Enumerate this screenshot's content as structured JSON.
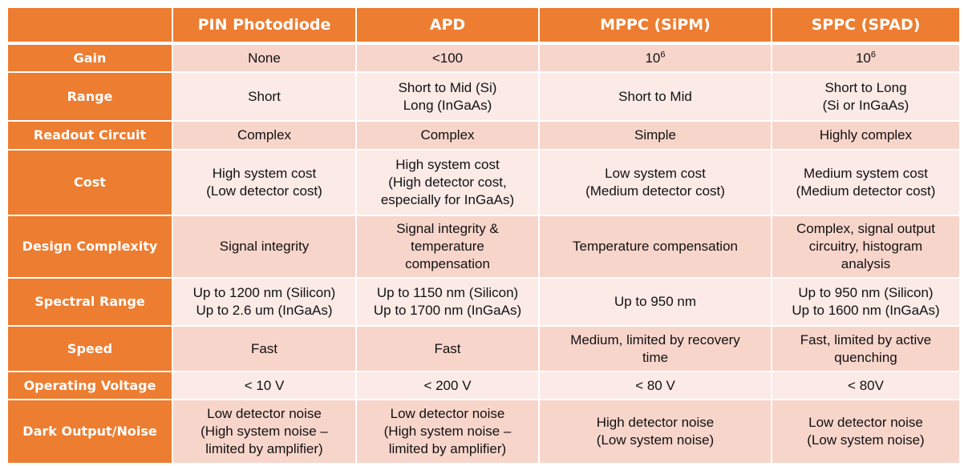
{
  "colors": {
    "header": "#ED7D31",
    "row_dark": "#F8D5CB",
    "row_light": "#FBEAE6",
    "header_text": "#FFFFFF"
  },
  "header": [
    "",
    "PIN Photodiode",
    "APD",
    "MPPC (SiPM)",
    "SPPC (SPAD)"
  ],
  "rows": [
    {
      "label": "Gain",
      "cells": [
        [
          "None"
        ],
        [
          "<100"
        ],
        [
          {
            "base": "10",
            "sup": "6"
          }
        ],
        [
          {
            "base": "10",
            "sup": "6"
          }
        ]
      ]
    },
    {
      "label": "Range",
      "cells": [
        [
          "Short"
        ],
        [
          "Short to Mid (Si)",
          "Long (InGaAs)"
        ],
        [
          "Short to Mid"
        ],
        [
          "Short to Long",
          "(Si or InGaAs)"
        ]
      ]
    },
    {
      "label": "Readout Circuit",
      "cells": [
        [
          "Complex"
        ],
        [
          "Complex"
        ],
        [
          "Simple"
        ],
        [
          "Highly complex"
        ]
      ]
    },
    {
      "label": "Cost",
      "cells": [
        [
          "High system cost",
          "(Low detector cost)"
        ],
        [
          "High system cost",
          "(High detector cost,",
          "especially for InGaAs)"
        ],
        [
          "Low system cost",
          "(Medium detector cost)"
        ],
        [
          "Medium system cost",
          "(Medium detector cost)"
        ]
      ]
    },
    {
      "label": "Design Complexity",
      "cells": [
        [
          "Signal integrity"
        ],
        [
          "Signal integrity &",
          "temperature",
          "compensation"
        ],
        [
          "Temperature compensation"
        ],
        [
          "Complex, signal output",
          "circuitry, histogram",
          "analysis"
        ]
      ]
    },
    {
      "label": "Spectral Range",
      "cells": [
        [
          "Up to 1200 nm (Silicon)",
          "Up to 2.6 um (InGaAs)"
        ],
        [
          "Up to 1150 nm (Silicon)",
          "Up to 1700 nm (InGaAs)"
        ],
        [
          "Up to 950 nm"
        ],
        [
          "Up to 950 nm (Silicon)",
          "Up to 1600 nm (InGaAs)"
        ]
      ]
    },
    {
      "label": "Speed",
      "cells": [
        [
          "Fast"
        ],
        [
          "Fast"
        ],
        [
          "Medium, limited by recovery",
          "time"
        ],
        [
          "Fast, limited by active",
          "quenching"
        ]
      ]
    },
    {
      "label": "Operating Voltage",
      "cells": [
        [
          "< 10 V"
        ],
        [
          "< 200 V"
        ],
        [
          "< 80 V"
        ],
        [
          "< 80V"
        ]
      ]
    },
    {
      "label": "Dark Output/Noise",
      "cells": [
        [
          "Low detector noise",
          "(High system noise –",
          "limited by amplifier)"
        ],
        [
          "Low detector noise",
          "(High system noise –",
          "limited by amplifier)"
        ],
        [
          "High detector noise",
          "(Low system noise)"
        ],
        [
          "Low detector noise",
          "(Low system noise)"
        ]
      ]
    }
  ]
}
